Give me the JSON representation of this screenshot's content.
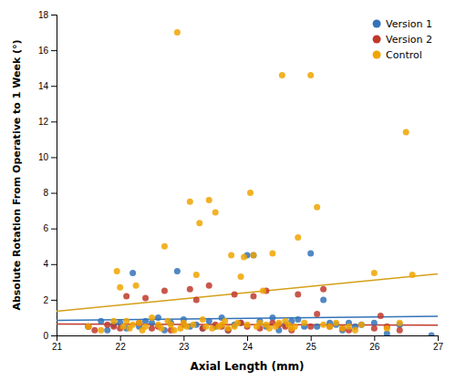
{
  "chart_data": {
    "type": "scatter",
    "xlabel": "Axial Length (mm)",
    "ylabel": "Absolute Rotation From Operative to 1 Week (°)",
    "xlim": [
      21,
      27
    ],
    "ylim": [
      0,
      18
    ],
    "xticks": [
      21,
      22,
      23,
      24,
      25,
      26,
      27
    ],
    "yticks": [
      0,
      2,
      4,
      6,
      8,
      10,
      12,
      14,
      16,
      18
    ],
    "legend": "upper right",
    "series": [
      {
        "name": "Version 1",
        "type": "scatter",
        "marker": "circle",
        "color": "#3373b8",
        "x": [
          21.5,
          21.7,
          21.8,
          21.9,
          22.0,
          22.1,
          22.2,
          22.3,
          22.4,
          22.5,
          22.6,
          22.7,
          22.8,
          22.9,
          23.0,
          23.1,
          23.2,
          23.3,
          23.4,
          23.5,
          23.6,
          23.7,
          23.8,
          23.9,
          24.0,
          24.1,
          24.2,
          24.3,
          24.4,
          24.5,
          24.6,
          24.7,
          24.8,
          24.9,
          25.0,
          25.1,
          25.2,
          25.3,
          25.4,
          25.5,
          25.6,
          25.7,
          25.8,
          26.0,
          26.2,
          26.4,
          26.9
        ],
        "values": [
          0.5,
          0.8,
          0.3,
          0.6,
          0.7,
          0.4,
          3.5,
          0.5,
          0.8,
          0.7,
          1.0,
          0.3,
          0.7,
          3.6,
          0.9,
          0.5,
          0.6,
          0.4,
          0.8,
          0.5,
          1.0,
          0.3,
          0.6,
          0.7,
          4.5,
          4.5,
          0.8,
          0.5,
          1.0,
          0.3,
          0.6,
          0.8,
          0.9,
          0.5,
          4.6,
          0.5,
          2.0,
          0.7,
          0.6,
          0.3,
          0.7,
          0.5,
          0.6,
          0.7,
          0.1,
          0.6,
          0.0
        ]
      },
      {
        "name": "Version 2",
        "type": "scatter",
        "marker": "circle",
        "color": "#c0392b",
        "x": [
          21.5,
          21.6,
          21.8,
          21.9,
          22.0,
          22.1,
          22.3,
          22.4,
          22.5,
          22.6,
          22.7,
          22.8,
          23.0,
          23.1,
          23.2,
          23.3,
          23.4,
          23.5,
          23.6,
          23.7,
          23.8,
          23.9,
          24.0,
          24.1,
          24.2,
          24.3,
          24.4,
          24.5,
          24.6,
          24.7,
          24.8,
          25.0,
          25.1,
          25.2,
          25.3,
          25.5,
          25.6,
          26.0,
          26.1,
          26.2,
          26.4
        ],
        "values": [
          0.5,
          0.3,
          0.6,
          0.5,
          0.4,
          2.2,
          0.7,
          2.1,
          0.4,
          0.5,
          2.5,
          0.3,
          0.6,
          2.6,
          2.0,
          0.4,
          2.8,
          0.6,
          0.5,
          0.3,
          2.3,
          0.7,
          0.5,
          2.2,
          0.4,
          2.5,
          0.7,
          0.6,
          0.5,
          0.3,
          2.3,
          0.5,
          1.2,
          2.6,
          0.5,
          0.4,
          0.3,
          0.4,
          1.1,
          0.5,
          0.3
        ]
      },
      {
        "name": "Control",
        "type": "scatter",
        "marker": "circle",
        "color": "#f0a500",
        "x": [
          21.5,
          21.7,
          21.9,
          21.95,
          22.0,
          22.05,
          22.1,
          22.15,
          22.2,
          22.25,
          22.3,
          22.35,
          22.4,
          22.5,
          22.6,
          22.65,
          22.7,
          22.75,
          22.8,
          22.85,
          22.9,
          22.95,
          23.0,
          23.05,
          23.1,
          23.15,
          23.2,
          23.25,
          23.3,
          23.35,
          23.4,
          23.45,
          23.5,
          23.55,
          23.6,
          23.65,
          23.7,
          23.75,
          23.8,
          23.85,
          23.9,
          23.95,
          24.0,
          24.05,
          24.1,
          24.15,
          24.2,
          24.25,
          24.3,
          24.35,
          24.4,
          24.45,
          24.5,
          24.55,
          24.6,
          24.65,
          24.7,
          24.75,
          24.8,
          24.9,
          25.0,
          25.1,
          25.2,
          25.3,
          25.4,
          25.5,
          25.6,
          25.7,
          25.8,
          26.0,
          26.2,
          26.4,
          26.5,
          26.6
        ],
        "values": [
          0.5,
          0.3,
          0.8,
          3.6,
          2.7,
          0.5,
          0.8,
          0.4,
          0.6,
          2.8,
          0.7,
          0.3,
          0.5,
          1.0,
          0.6,
          0.4,
          5.0,
          0.8,
          0.6,
          0.3,
          17.0,
          0.4,
          0.7,
          0.5,
          7.5,
          0.6,
          3.4,
          6.3,
          0.9,
          0.5,
          7.6,
          0.4,
          6.9,
          0.5,
          0.6,
          0.8,
          0.4,
          4.5,
          0.5,
          0.7,
          3.3,
          4.4,
          0.6,
          8.0,
          4.5,
          0.5,
          0.7,
          2.5,
          0.6,
          0.4,
          4.6,
          0.5,
          0.7,
          14.6,
          0.8,
          0.6,
          0.4,
          0.5,
          5.5,
          0.7,
          14.6,
          7.2,
          0.6,
          0.5,
          0.7,
          0.4,
          0.5,
          0.3,
          0.6,
          3.5,
          0.4,
          0.7,
          11.4,
          3.4
        ]
      },
      {
        "type": "line",
        "line_style": "solid",
        "color": "#3373b8",
        "x": [
          21,
          27
        ],
        "values": [
          0.84,
          1.08
        ]
      },
      {
        "type": "line",
        "line_style": "solid",
        "color": "#c0392b",
        "x": [
          21,
          27
        ],
        "values": [
          0.64,
          0.58
        ]
      },
      {
        "type": "line",
        "line_style": "solid",
        "color": "#d4a017",
        "x": [
          21,
          27
        ],
        "values": [
          1.35,
          3.45
        ]
      }
    ]
  }
}
